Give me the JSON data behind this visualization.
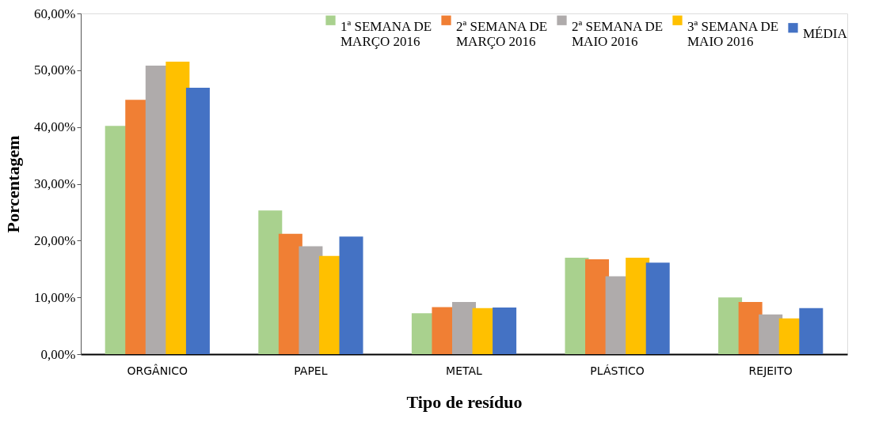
{
  "chart_data": {
    "type": "bar",
    "xlabel": "Tipo de resíduo",
    "ylabel": "Porcentagem",
    "categories": [
      "ORGÂNICO",
      "PAPEL",
      "METAL",
      "PLÁSTICO",
      "REJEITO"
    ],
    "series": [
      {
        "name": "1ª SEMANA DE\nMARÇO 2016",
        "color": "#a9d18e",
        "values": [
          40.2,
          25.3,
          7.2,
          17.0,
          10.0
        ]
      },
      {
        "name": "2ª SEMANA DE\nMARÇO 2016",
        "color": "#f07f34",
        "values": [
          44.8,
          21.2,
          8.3,
          16.7,
          9.2
        ]
      },
      {
        "name": "2ª SEMANA DE\nMAIO 2016",
        "color": "#afabab",
        "values": [
          50.8,
          19.0,
          9.2,
          13.7,
          7.0
        ]
      },
      {
        "name": "3ª SEMANA DE\nMAIO 2016",
        "color": "#ffc000",
        "values": [
          51.5,
          17.3,
          8.1,
          17.0,
          6.3
        ]
      },
      {
        "name": "MÉDIA",
        "color": "#4472c4",
        "values": [
          46.9,
          20.7,
          8.2,
          16.1,
          8.1
        ]
      }
    ],
    "ylim": [
      0,
      60
    ],
    "yticks": [
      {
        "value": 0,
        "label": "0,00%"
      },
      {
        "value": 10,
        "label": "10,00%"
      },
      {
        "value": 20,
        "label": "20,00%"
      },
      {
        "value": 30,
        "label": "30,00%"
      },
      {
        "value": 40,
        "label": "40,00%"
      },
      {
        "value": 50,
        "label": "50,00%"
      },
      {
        "value": 60,
        "label": "60,00%"
      }
    ],
    "grid": false,
    "legend": "top right"
  }
}
